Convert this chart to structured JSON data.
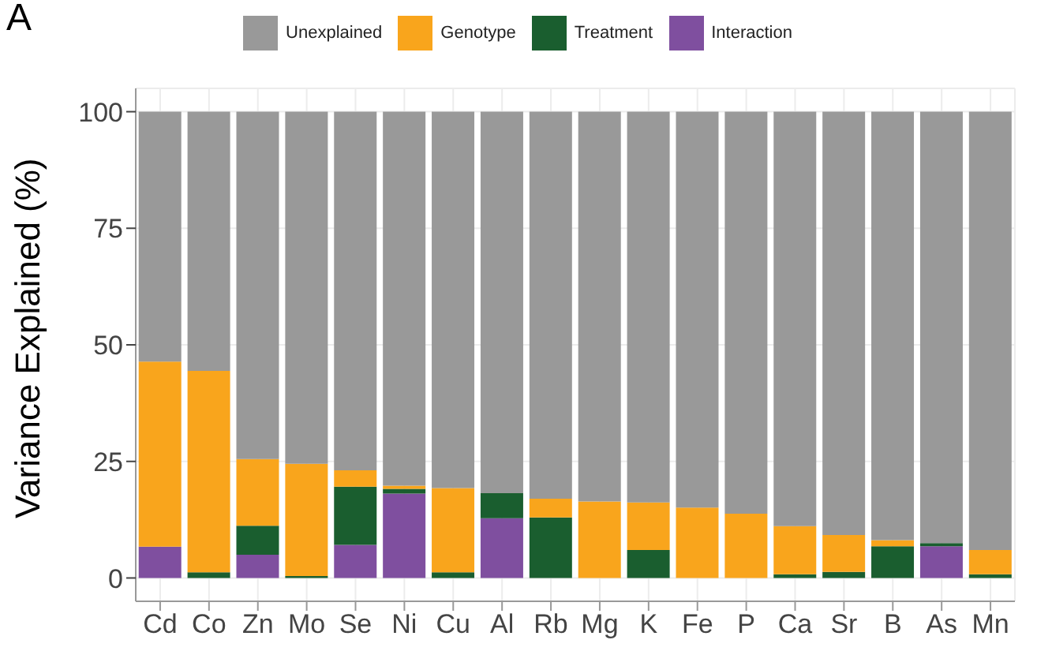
{
  "chart_data": {
    "type": "bar",
    "title": "A",
    "ylabel": "Variance Explained (%)",
    "stacked": true,
    "legend": "top",
    "grid": true,
    "ylim": [
      -5,
      105
    ],
    "yticks": [
      0,
      25,
      50,
      75,
      100
    ],
    "categories": [
      "Cd",
      "Co",
      "Zn",
      "Mo",
      "Se",
      "Ni",
      "Cu",
      "Al",
      "Rb",
      "Mg",
      "K",
      "Fe",
      "P",
      "Ca",
      "Sr",
      "B",
      "As",
      "Mn"
    ],
    "series": [
      {
        "name": "Interaction",
        "color": "#7f4f9f",
        "values": [
          6.7,
          0,
          5,
          0,
          7.1,
          18.1,
          0,
          12.8,
          0,
          0,
          0,
          0,
          0,
          0,
          0,
          0,
          6.8,
          0
        ]
      },
      {
        "name": "Treatment",
        "color": "#1a5e2f",
        "values": [
          0,
          1.2,
          6.2,
          0.4,
          12.5,
          1,
          1.2,
          5.4,
          13,
          0,
          6,
          0,
          0,
          0.8,
          1.3,
          6.8,
          0.7,
          0.8
        ]
      },
      {
        "name": "Genotype",
        "color": "#f9a51c",
        "values": [
          39.7,
          43.2,
          14.3,
          24.1,
          3.5,
          0.7,
          18.1,
          0,
          4,
          16.4,
          10.2,
          15.1,
          13.8,
          10.3,
          7.9,
          1.3,
          0,
          5.2
        ]
      },
      {
        "name": "Unexplained",
        "color": "#999999",
        "values": [
          53.6,
          55.6,
          74.5,
          75.5,
          76.9,
          80.2,
          80.7,
          81.8,
          83,
          83.6,
          83.8,
          84.9,
          86.2,
          88.9,
          90.8,
          91.9,
          92.5,
          94
        ]
      }
    ]
  }
}
